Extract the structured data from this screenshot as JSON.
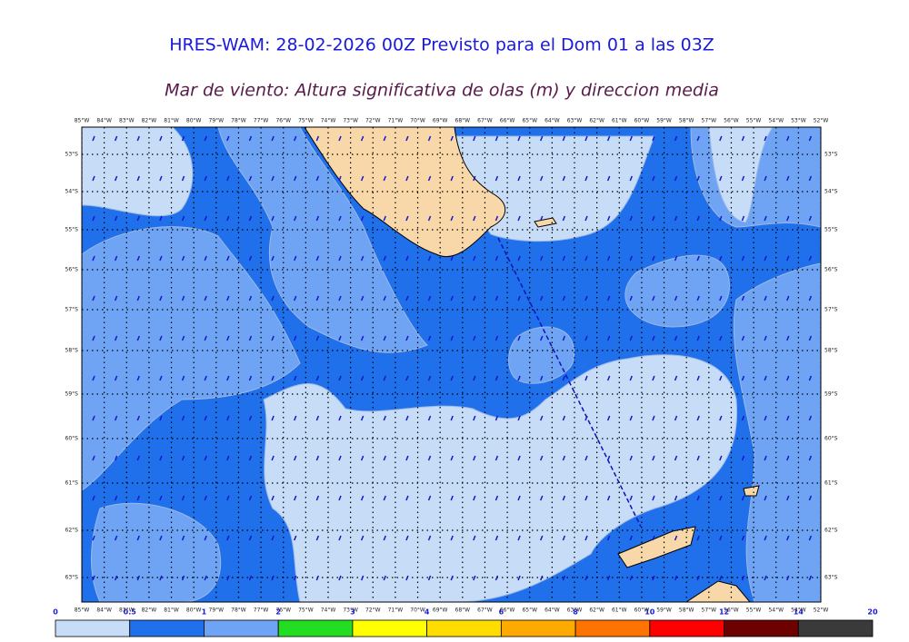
{
  "header": {
    "title": "HRES-WAM: 28-02-2026 00Z Previsto para el Dom 01 a las 03Z",
    "subtitle": "Mar de viento: Altura significativa de olas (m) y direccion media"
  },
  "map": {
    "lon_labels": [
      "85°W",
      "84°W",
      "83°W",
      "82°W",
      "81°W",
      "80°W",
      "79°W",
      "78°W",
      "77°W",
      "76°W",
      "75°W",
      "74°W",
      "73°W",
      "72°W",
      "71°W",
      "70°W",
      "69°W",
      "68°W",
      "67°W",
      "66°W",
      "65°W",
      "64°W",
      "63°W",
      "62°W",
      "61°W",
      "60°W",
      "59°W",
      "58°W",
      "57°W",
      "56°W",
      "55°W",
      "54°W",
      "53°W",
      "52°W"
    ],
    "lat_labels": [
      "53°S",
      "54°S",
      "55°S",
      "56°S",
      "57°S",
      "58°S",
      "59°S",
      "60°S",
      "61°S",
      "62°S",
      "63°S"
    ]
  },
  "colorbar": {
    "ticks": [
      "0",
      "0.5",
      "1",
      "2",
      "3",
      "4",
      "6",
      "8",
      "10",
      "12",
      "14",
      "20"
    ],
    "colors": [
      "#c6dcf7",
      "#1f70ea",
      "#6ea4f3",
      "#22dd22",
      "#ffff00",
      "#ffdd00",
      "#ffaa00",
      "#ff7400",
      "#ff0000",
      "#6e0000",
      "#3a3a3a"
    ]
  }
}
